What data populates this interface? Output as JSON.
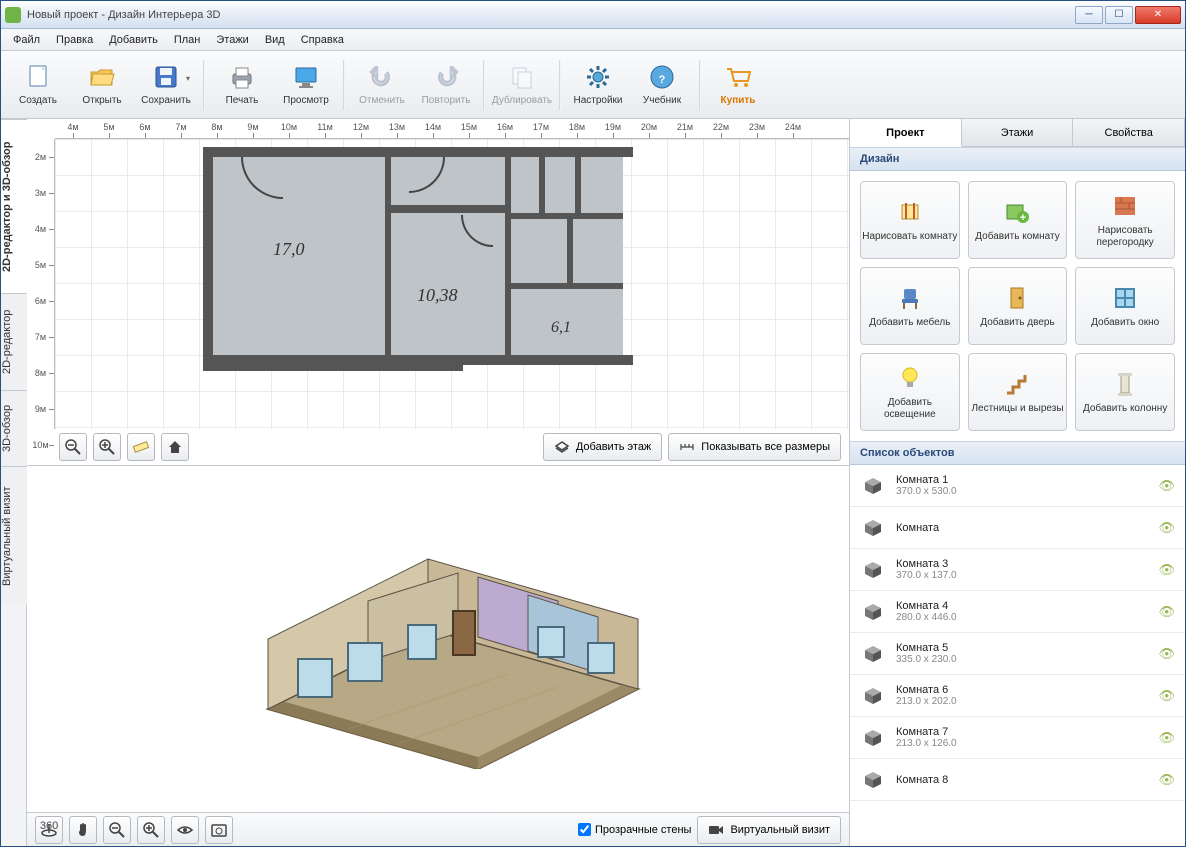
{
  "window": {
    "title": "Новый проект - Дизайн Интерьера 3D"
  },
  "menu": [
    "Файл",
    "Правка",
    "Добавить",
    "План",
    "Этажи",
    "Вид",
    "Справка"
  ],
  "toolbar": [
    {
      "label": "Создать",
      "icon": "file-new",
      "disabled": false
    },
    {
      "label": "Открыть",
      "icon": "folder-open",
      "disabled": false
    },
    {
      "label": "Сохранить",
      "icon": "save",
      "disabled": false,
      "dropdown": true
    },
    {
      "sep": true
    },
    {
      "label": "Печать",
      "icon": "print",
      "disabled": false
    },
    {
      "label": "Просмотр",
      "icon": "monitor",
      "disabled": false
    },
    {
      "sep": true
    },
    {
      "label": "Отменить",
      "icon": "undo",
      "disabled": true
    },
    {
      "label": "Повторить",
      "icon": "redo",
      "disabled": true
    },
    {
      "sep": true
    },
    {
      "label": "Дублировать",
      "icon": "duplicate",
      "disabled": true
    },
    {
      "sep": true
    },
    {
      "label": "Настройки",
      "icon": "gear",
      "disabled": false
    },
    {
      "label": "Учебник",
      "icon": "help",
      "disabled": false
    },
    {
      "sep": true
    },
    {
      "label": "Купить",
      "icon": "cart",
      "disabled": false,
      "buy": true
    }
  ],
  "leftTabs": [
    {
      "label": "2D-редактор и 3D-обзор",
      "active": true
    },
    {
      "label": "2D-редактор",
      "active": false
    },
    {
      "label": "3D-обзор",
      "active": false
    },
    {
      "label": "Виртуальный визит",
      "active": false
    }
  ],
  "ruler": {
    "h": [
      "4м",
      "5м",
      "6м",
      "7м",
      "8м",
      "9м",
      "10м",
      "11м",
      "12м",
      "13м",
      "14м",
      "15м",
      "16м",
      "17м",
      "18м",
      "19м",
      "20м",
      "21м",
      "22м",
      "23м",
      "24м"
    ],
    "v": [
      "2м",
      "3м",
      "4м",
      "5м",
      "6м",
      "7м",
      "8м",
      "9м",
      "10м"
    ]
  },
  "planLabels": {
    "r1": "17,0",
    "r2": "10,38",
    "r3": "6,1"
  },
  "viewToolbar": [
    "zoom-out",
    "zoom-in",
    "ruler",
    "home"
  ],
  "bottomButtons": {
    "addFloor": "Добавить этаж",
    "showDims": "Показывать все размеры"
  },
  "bottom3d": {
    "transparent": "Прозрачные стены",
    "virtual": "Виртуальный визит"
  },
  "bottom3dTools": [
    "rotate360",
    "hand",
    "zoom-out",
    "zoom-in",
    "eye",
    "photo"
  ],
  "rightTabs": [
    {
      "label": "Проект",
      "active": true
    },
    {
      "label": "Этажи",
      "active": false
    },
    {
      "label": "Свойства",
      "active": false
    }
  ],
  "sections": {
    "design": "Дизайн",
    "objects": "Список объектов"
  },
  "designButtons": [
    {
      "label": "Нарисовать комнату",
      "icon": "draw-room"
    },
    {
      "label": "Добавить комнату",
      "icon": "add-room"
    },
    {
      "label": "Нарисовать перегородку",
      "icon": "wall"
    },
    {
      "label": "Добавить мебель",
      "icon": "chair"
    },
    {
      "label": "Добавить дверь",
      "icon": "door"
    },
    {
      "label": "Добавить окно",
      "icon": "window"
    },
    {
      "label": "Добавить освещение",
      "icon": "light"
    },
    {
      "label": "Лестницы и вырезы",
      "icon": "stairs"
    },
    {
      "label": "Добавить колонну",
      "icon": "column"
    }
  ],
  "objects": [
    {
      "name": "Комната 1",
      "dims": "370.0 x 530.0"
    },
    {
      "name": "Комната",
      "dims": ""
    },
    {
      "name": "Комната 3",
      "dims": "370.0 x 137.0"
    },
    {
      "name": "Комната 4",
      "dims": "280.0 x 446.0"
    },
    {
      "name": "Комната 5",
      "dims": "335.0 x 230.0"
    },
    {
      "name": "Комната 6",
      "dims": "213.0 x 202.0"
    },
    {
      "name": "Комната 7",
      "dims": "213.0 x 126.0"
    },
    {
      "name": "Комната 8",
      "dims": ""
    }
  ],
  "colors": {
    "wall": "#555555",
    "room": "#bfc4c9",
    "grid": "#e8ebee",
    "accent": "#2a4a78",
    "buy": "#d97500"
  }
}
